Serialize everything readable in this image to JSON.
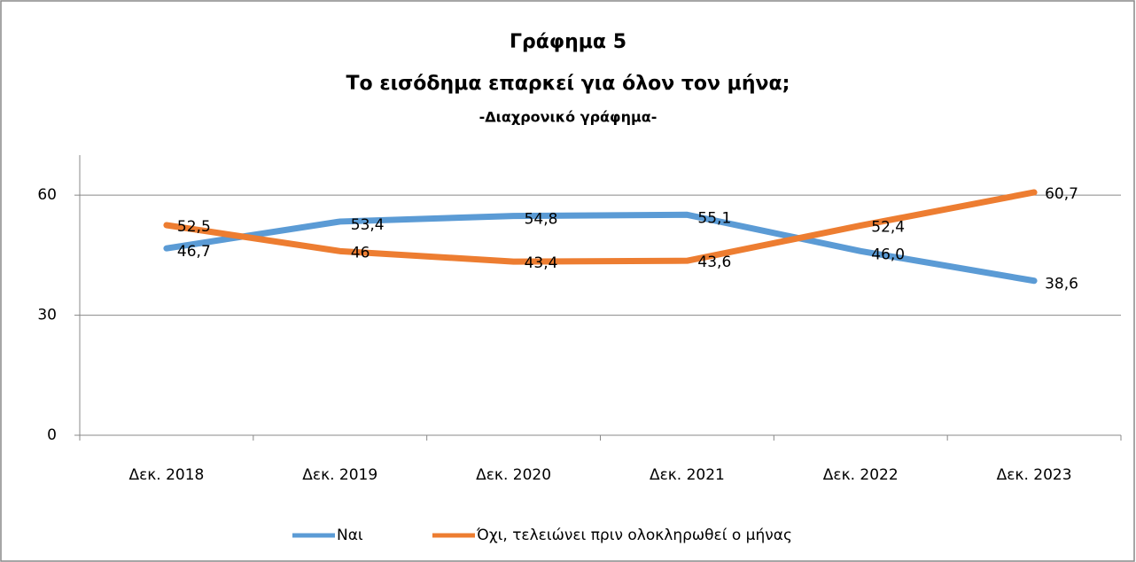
{
  "chart_data": {
    "type": "line",
    "title": [
      "Γράφημα 5",
      "Το εισόδημα επαρκεί για όλον τον μήνα;",
      "-Διαχρονικό γράφημα-"
    ],
    "categories": [
      "Δεκ. 2018",
      "Δεκ. 2019",
      "Δεκ. 2020",
      "Δεκ. 2021",
      "Δεκ. 2022",
      "Δεκ. 2023"
    ],
    "series": [
      {
        "name": "Ναι",
        "color": "#5b9bd5",
        "values": [
          46.7,
          53.4,
          54.8,
          55.1,
          46.0,
          38.6
        ],
        "value_labels": [
          "46,7",
          "53,4",
          "54,8",
          "55,1",
          "46,0",
          "38,6"
        ]
      },
      {
        "name": "Όχι, τελειώνει πριν ολοκληρωθεί ο μήνας",
        "color": "#ed7d31",
        "values": [
          52.5,
          46,
          43.4,
          43.6,
          52.4,
          60.7
        ],
        "value_labels": [
          "52,5",
          "46",
          "43,4",
          "43,6",
          "52,4",
          "60,7"
        ]
      }
    ],
    "ylim": [
      0,
      70
    ],
    "yticks": [
      0,
      30,
      60
    ],
    "grid": true,
    "legend": "bottom"
  }
}
